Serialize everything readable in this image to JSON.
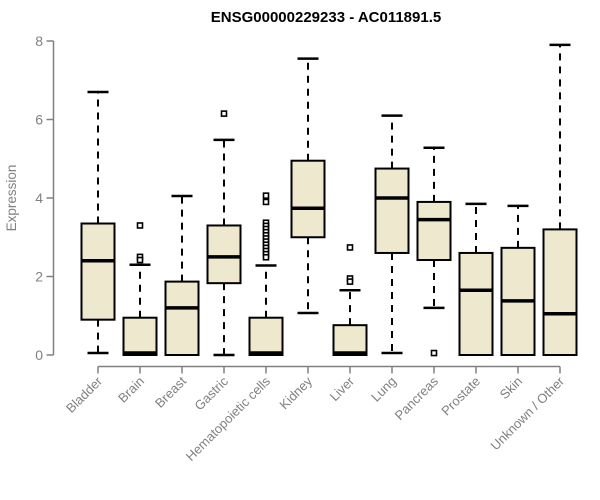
{
  "chart_data": {
    "type": "boxplot",
    "title": "ENSG00000229233 - AC011891.5",
    "ylabel": "Expression",
    "xlabel": "",
    "ylim": [
      0,
      8
    ],
    "yticks": [
      0,
      2,
      4,
      6,
      8
    ],
    "grid": false,
    "legend": "none",
    "categories": [
      "Bladder",
      "Brain",
      "Breast",
      "Gastric",
      "Hematopoietic cells",
      "Kidney",
      "Liver",
      "Lung",
      "Pancreas",
      "Prostate",
      "Skin",
      "Unknown / Other"
    ],
    "series": [
      {
        "name": "Bladder",
        "whisker_low": 0.05,
        "q1": 0.9,
        "median": 2.4,
        "q3": 3.35,
        "whisker_high": 6.7,
        "outliers": []
      },
      {
        "name": "Brain",
        "whisker_low": 0.0,
        "q1": 0.0,
        "median": 0.05,
        "q3": 0.95,
        "whisker_high": 2.3,
        "outliers": [
          3.3,
          2.5,
          2.42
        ]
      },
      {
        "name": "Breast",
        "whisker_low": 0.0,
        "q1": 0.0,
        "median": 1.2,
        "q3": 1.87,
        "whisker_high": 4.05,
        "outliers": []
      },
      {
        "name": "Gastric",
        "whisker_low": 0.0,
        "q1": 1.83,
        "median": 2.5,
        "q3": 3.3,
        "whisker_high": 5.48,
        "outliers": [
          6.15
        ]
      },
      {
        "name": "Hematopoietic cells",
        "whisker_low": 0.0,
        "q1": 0.0,
        "median": 0.05,
        "q3": 0.95,
        "whisker_high": 2.28,
        "outliers": [
          4.06,
          3.9,
          3.37,
          3.29,
          3.21,
          3.13,
          3.05,
          2.97,
          2.89,
          2.81,
          2.73,
          2.65,
          2.57,
          2.49
        ]
      },
      {
        "name": "Kidney",
        "whisker_low": 1.07,
        "q1": 3.0,
        "median": 3.74,
        "q3": 4.95,
        "whisker_high": 7.55,
        "outliers": []
      },
      {
        "name": "Liver",
        "whisker_low": 0.0,
        "q1": 0.0,
        "median": 0.05,
        "q3": 0.76,
        "whisker_high": 1.65,
        "outliers": [
          2.74,
          1.95,
          1.87
        ]
      },
      {
        "name": "Lung",
        "whisker_low": 0.05,
        "q1": 2.6,
        "median": 4.0,
        "q3": 4.75,
        "whisker_high": 6.1,
        "outliers": []
      },
      {
        "name": "Pancreas",
        "whisker_low": 1.2,
        "q1": 2.42,
        "median": 3.45,
        "q3": 3.9,
        "whisker_high": 5.28,
        "outliers": [
          0.05
        ]
      },
      {
        "name": "Prostate",
        "whisker_low": 0.0,
        "q1": 0.0,
        "median": 1.65,
        "q3": 2.6,
        "whisker_high": 3.85,
        "outliers": []
      },
      {
        "name": "Skin",
        "whisker_low": 0.0,
        "q1": 0.0,
        "median": 1.38,
        "q3": 2.73,
        "whisker_high": 3.8,
        "outliers": []
      },
      {
        "name": "Unknown / Other",
        "whisker_low": 0.0,
        "q1": 0.0,
        "median": 1.05,
        "q3": 3.2,
        "whisker_high": 7.9,
        "outliers": []
      }
    ],
    "colors": {
      "box_fill": "#ede8ce",
      "box_stroke": "#000000",
      "median": "#000000",
      "whisker": "#000000",
      "axis": "#808080",
      "tick_label": "#808080",
      "axis_label": "#808080",
      "title": "#000000",
      "background": "#ffffff"
    }
  }
}
